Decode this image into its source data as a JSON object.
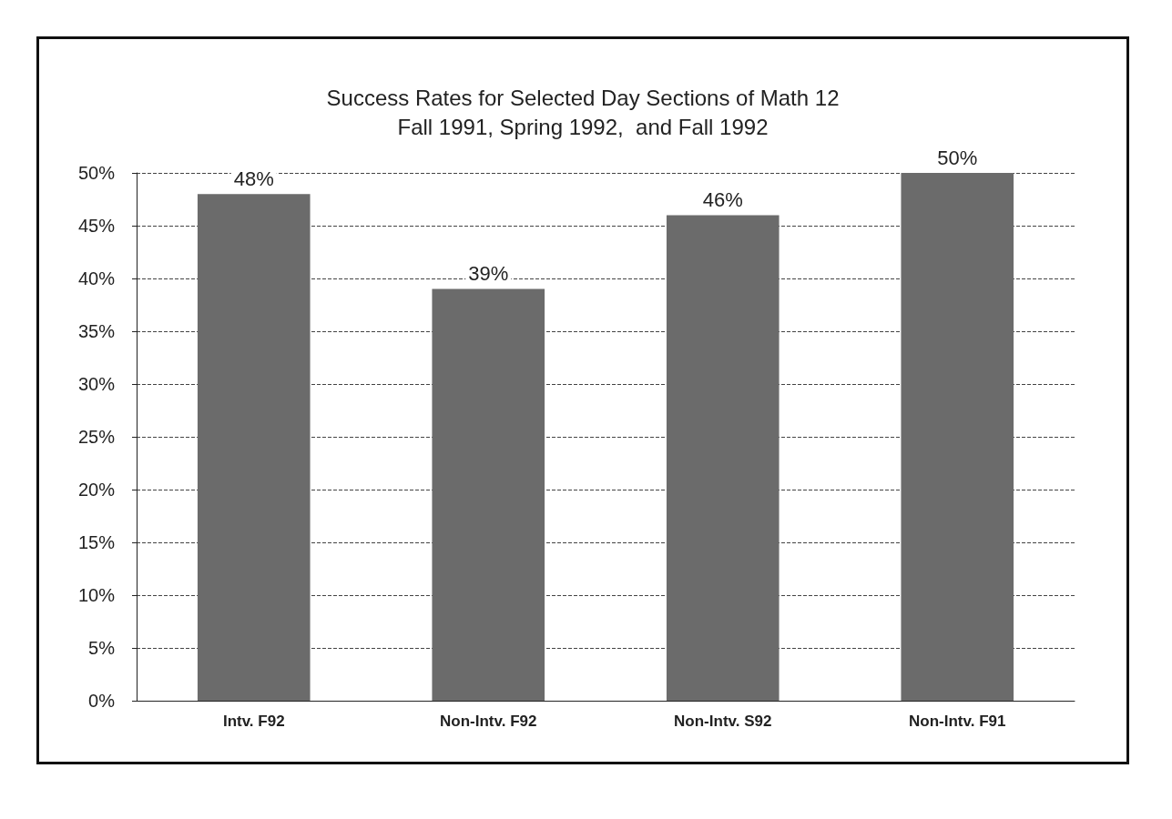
{
  "chart_data": {
    "type": "bar",
    "title": "Success Rates for Selected Day Sections of Math 12",
    "subtitle": "Fall 1991, Spring 1992,  and Fall 1992",
    "categories": [
      "Intv. F92",
      "Non-Intv. F92",
      "Non-Intv. S92",
      "Non-Intv. F91"
    ],
    "values": [
      48,
      39,
      46,
      50
    ],
    "color": "#6b6b6b",
    "value_labels": [
      "48%",
      "39%",
      "46%",
      "50%"
    ],
    "ylim": [
      0,
      50
    ],
    "yticks": [
      {
        "value": 0,
        "label": "0%"
      },
      {
        "value": 5,
        "label": "5%"
      },
      {
        "value": 10,
        "label": "10%"
      },
      {
        "value": 15,
        "label": "15%"
      },
      {
        "value": 20,
        "label": "20%"
      },
      {
        "value": 25,
        "label": "25%"
      },
      {
        "value": 30,
        "label": "30%"
      },
      {
        "value": 35,
        "label": "35%"
      },
      {
        "value": 40,
        "label": "40%"
      },
      {
        "value": 45,
        "label": "45%"
      },
      {
        "value": 50,
        "label": "50%"
      }
    ],
    "grid": "y"
  }
}
